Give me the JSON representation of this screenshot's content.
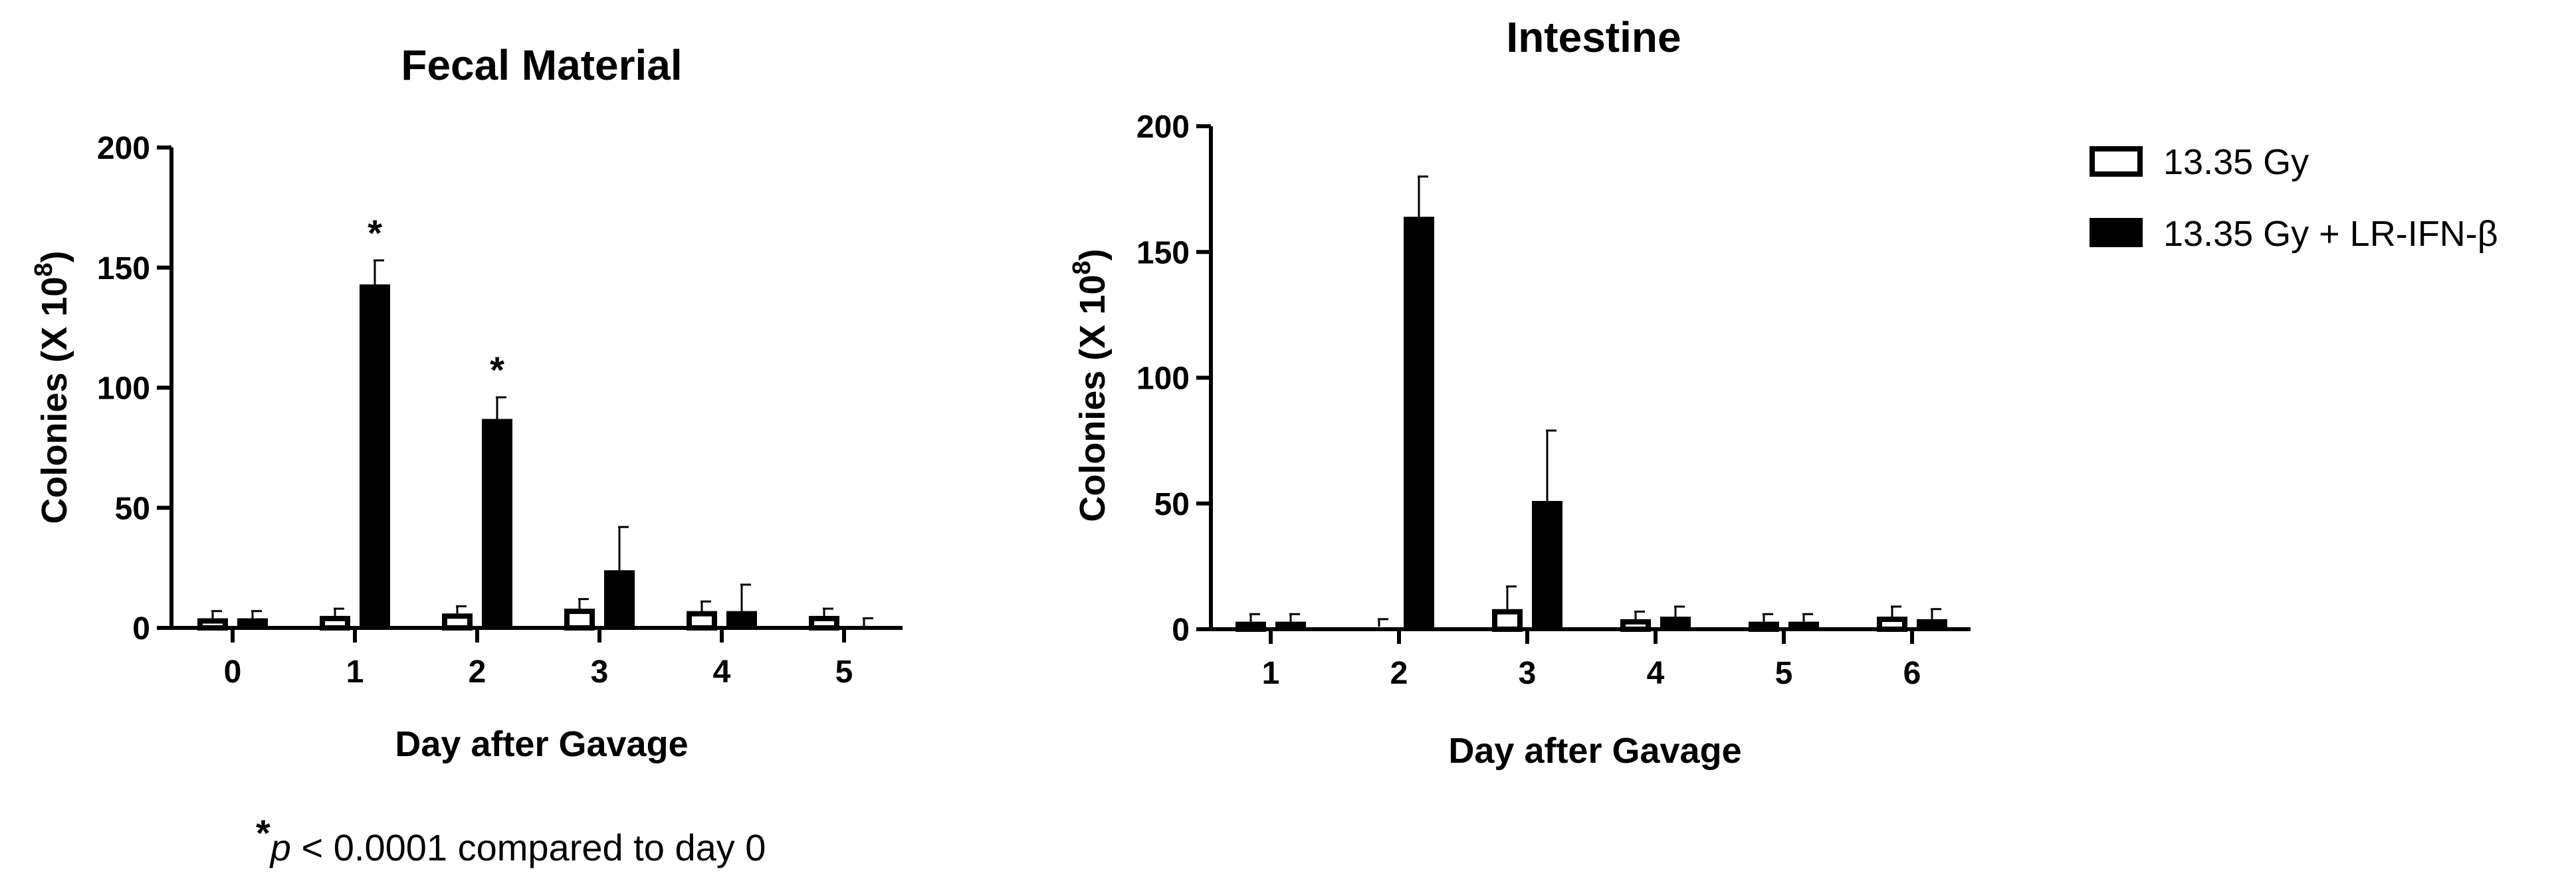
{
  "legend": {
    "items": [
      {
        "label": "13.35 Gy",
        "fill": "#ffffff"
      },
      {
        "label": "13.35 Gy + LR-IFN-β",
        "fill": "#000000"
      }
    ],
    "placement": "right"
  },
  "footnote": {
    "star": "*",
    "p": "p",
    "rest": " < 0.0001 compared to day 0"
  },
  "chart_data": [
    {
      "type": "bar",
      "title": "Fecal Material",
      "xlabel": "Day after Gavage",
      "ylabel_main": "Colonies (X 10",
      "ylabel_sup": "8",
      "ylabel_close": ")",
      "ylim": [
        0,
        200
      ],
      "yticks": [
        "0",
        "50",
        "100",
        "150",
        "200"
      ],
      "categories": [
        "0",
        "1",
        "2",
        "3",
        "4",
        "5"
      ],
      "series": [
        {
          "name": "13.35 Gy",
          "values": [
            4,
            5,
            6,
            8,
            7,
            5
          ],
          "errors": [
            3,
            3,
            3,
            4,
            4,
            3
          ]
        },
        {
          "name": "13.35 Gy + LR-IFN-β",
          "values": [
            4,
            143,
            87,
            24,
            7,
            0
          ],
          "errors": [
            3,
            10,
            9,
            18,
            11,
            4
          ]
        }
      ],
      "annotations": [
        "",
        "*",
        "*",
        "",
        "",
        ""
      ],
      "grid": false
    },
    {
      "type": "bar",
      "title": "Intestine",
      "xlabel": "Day after Gavage",
      "ylabel_main": "Colonies (X 10",
      "ylabel_sup": "8",
      "ylabel_close": ")",
      "ylim": [
        0,
        200
      ],
      "yticks": [
        "0",
        "50",
        "100",
        "150",
        "200"
      ],
      "categories": [
        "1",
        "2",
        "3",
        "4",
        "5",
        "6"
      ],
      "series": [
        {
          "name": "13.35 Gy",
          "values": [
            3,
            1,
            8,
            4,
            3,
            5
          ],
          "errors": [
            3,
            3,
            9,
            3,
            3,
            4
          ]
        },
        {
          "name": "13.35 Gy + LR-IFN-β",
          "values": [
            3,
            164,
            51,
            5,
            3,
            4
          ],
          "errors": [
            3,
            16,
            28,
            4,
            3,
            4
          ]
        }
      ],
      "annotations": [
        "",
        "",
        "",
        "",
        "",
        ""
      ],
      "grid": false
    }
  ],
  "colors": {
    "axis": "#000000",
    "bar_outline": "#000000",
    "bar_dark": "#000000",
    "bar_light": "#ffffff"
  }
}
